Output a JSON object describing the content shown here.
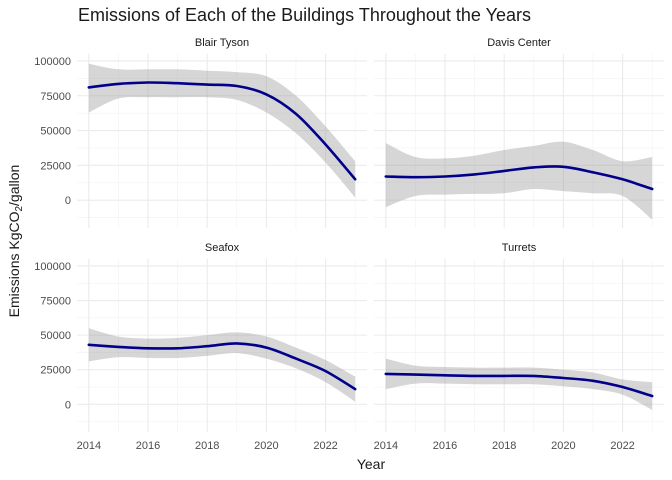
{
  "chart_data": {
    "type": "line",
    "title": "Emissions of Each of the Buildings Throughout the Years",
    "xlabel": "Year",
    "ylabel": {
      "main": "Emissions KgCO",
      "sub": "2",
      "tail": "/gallon"
    },
    "x_ticks": [
      "2014",
      "2016",
      "2018",
      "2020",
      "2022"
    ],
    "y_ticks": [
      "0",
      "25000",
      "50000",
      "75000",
      "100000"
    ],
    "xlim": [
      2013.6,
      2023.4
    ],
    "ylim": [
      -20000,
      105000
    ],
    "grid": true,
    "line_color": "#00008B",
    "band_color": "#999999",
    "panels": [
      {
        "name": "Blair Tyson",
        "x": [
          2014,
          2015,
          2016,
          2017,
          2018,
          2019,
          2020,
          2021,
          2022,
          2023
        ],
        "y": [
          81000,
          83500,
          84500,
          84000,
          83000,
          82000,
          76000,
          62000,
          40000,
          15000
        ],
        "lower": [
          63000,
          73000,
          74000,
          74000,
          74000,
          72000,
          63000,
          48000,
          27000,
          2000
        ],
        "upper": [
          98000,
          94000,
          94000,
          94000,
          93000,
          92000,
          89000,
          75000,
          53000,
          28000
        ]
      },
      {
        "name": "Davis Center",
        "x": [
          2014,
          2015,
          2016,
          2017,
          2018,
          2019,
          2020,
          2021,
          2022,
          2023
        ],
        "y": [
          17000,
          16500,
          17000,
          18500,
          21000,
          23500,
          24000,
          20000,
          15000,
          8000
        ],
        "lower": [
          -5000,
          3000,
          4000,
          4500,
          5000,
          8000,
          6500,
          5000,
          3000,
          -14000
        ],
        "upper": [
          41000,
          31000,
          30000,
          32000,
          36000,
          39000,
          42000,
          36000,
          28000,
          31000
        ]
      },
      {
        "name": "Seafox",
        "x": [
          2014,
          2015,
          2016,
          2017,
          2018,
          2019,
          2020,
          2021,
          2022,
          2023
        ],
        "y": [
          43000,
          41500,
          40500,
          40500,
          42000,
          44000,
          41000,
          33000,
          24000,
          11000
        ],
        "lower": [
          31000,
          34000,
          33500,
          33500,
          35000,
          37000,
          33000,
          26000,
          16000,
          2000
        ],
        "upper": [
          55000,
          49000,
          47500,
          48000,
          50000,
          52000,
          49000,
          41000,
          32000,
          20000
        ]
      },
      {
        "name": "Turrets",
        "x": [
          2014,
          2015,
          2016,
          2017,
          2018,
          2019,
          2020,
          2021,
          2022,
          2023
        ],
        "y": [
          22000,
          21500,
          21000,
          20500,
          20500,
          20500,
          19000,
          17000,
          12500,
          6000
        ],
        "lower": [
          11000,
          15000,
          15000,
          14500,
          14500,
          14500,
          13000,
          11000,
          7000,
          -4000
        ],
        "upper": [
          33000,
          28000,
          27000,
          26500,
          26500,
          26500,
          25000,
          23000,
          18000,
          16000
        ]
      }
    ]
  }
}
